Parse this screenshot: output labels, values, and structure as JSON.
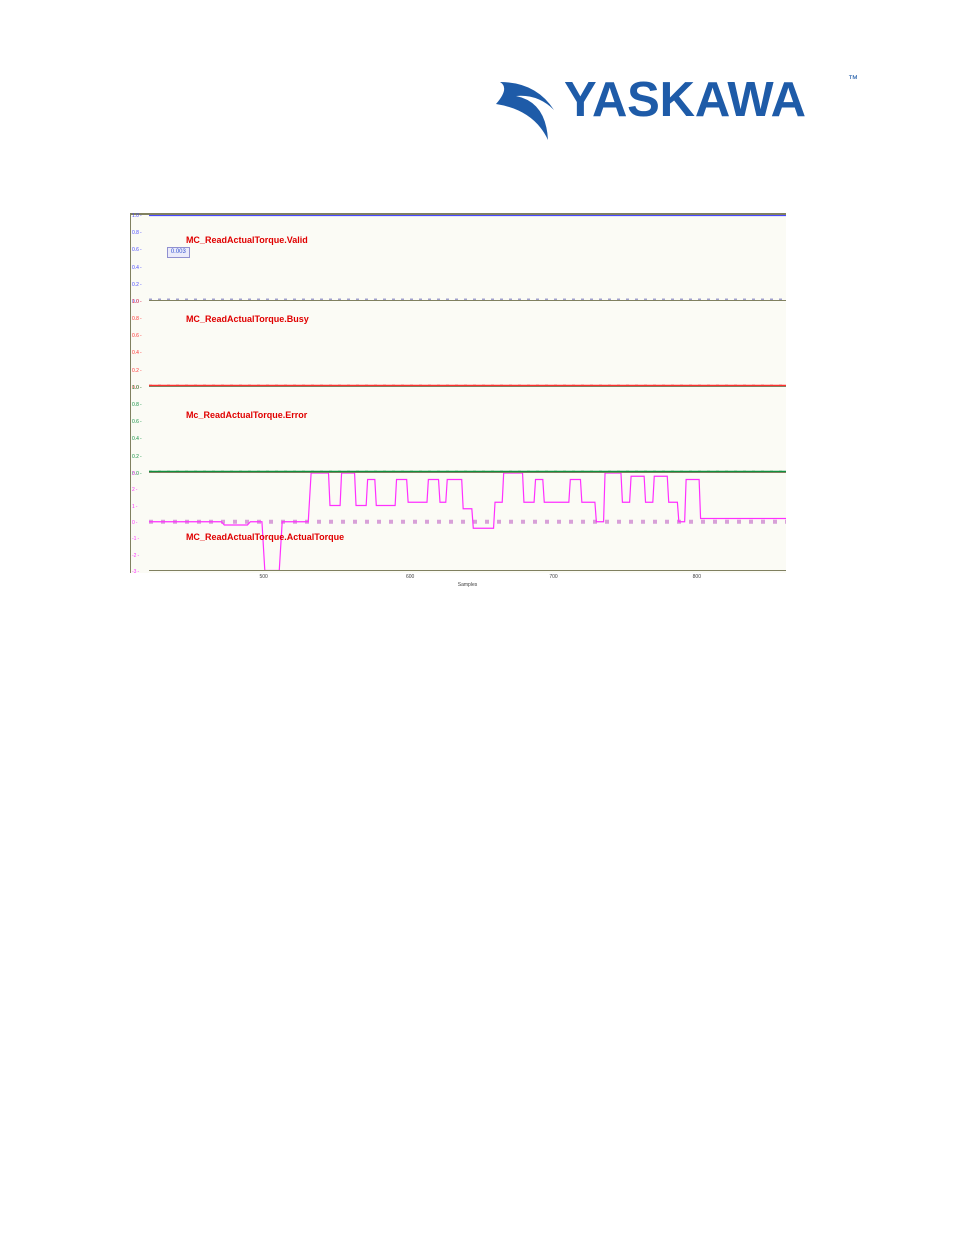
{
  "logo": {
    "text": "YASKAWA",
    "tm": "™",
    "color": "#1e5ba8"
  },
  "chart": {
    "background_color": "#fbfbf5",
    "border_color": "#808060",
    "x_axis": {
      "label": "Samples",
      "ticks": [
        500,
        600,
        700,
        800
      ],
      "tick_positions_pct": [
        18.0,
        41.0,
        63.5,
        86.0
      ],
      "range": [
        420,
        860
      ],
      "label_color": "#404040"
    },
    "subplots": [
      {
        "name": "valid",
        "label": "MC_ReadActualTorque.Valid",
        "label_color": "#e00000",
        "label_pos_pct": [
          5.8,
          24
        ],
        "top_pct": 0,
        "height_pct": 24,
        "trace_color": "#4848ff",
        "baseline_style": "dotted",
        "baseline_color": "#a0a0cc",
        "y_ticks": [
          "1.0",
          "0.8",
          "0.6",
          "0.4",
          "0.2",
          "0.0"
        ],
        "y_tick_color": "#4848ff",
        "value_constant": 1.0,
        "marker_text": "0.003",
        "marker_pos_pct": [
          2.8,
          38
        ]
      },
      {
        "name": "busy",
        "label": "MC_ReadActualTorque.Busy",
        "label_color": "#e00000",
        "label_pos_pct": [
          5.8,
          15
        ],
        "top_pct": 24,
        "height_pct": 24,
        "trace_color": "#ff3030",
        "baseline_style": "dotted",
        "baseline_color": "#d8a0a0",
        "y_ticks": [
          "1.0",
          "0.8",
          "0.6",
          "0.4",
          "0.2",
          "0.0"
        ],
        "y_tick_color": "#ff3030",
        "value_constant": 0.0
      },
      {
        "name": "error",
        "label": "Mc_ReadActualTorque.Error",
        "label_color": "#e00000",
        "label_pos_pct": [
          5.8,
          27
        ],
        "top_pct": 48,
        "height_pct": 24,
        "trace_color": "#109040",
        "baseline_style": "dotted",
        "baseline_color": "#a0c8a0",
        "y_ticks": [
          "1.0",
          "0.8",
          "0.6",
          "0.4",
          "0.2",
          "0.0"
        ],
        "y_tick_color": "#109040",
        "value_constant": 0.0
      },
      {
        "name": "actual-torque",
        "label": "MC_ReadActualTorque.ActualTorque",
        "label_color": "#e00000",
        "label_pos_pct": [
          5.8,
          61
        ],
        "top_pct": 72,
        "height_pct": 27.5,
        "trace_color": "#ff30ff",
        "baseline_style": "dotted",
        "baseline_color": "#d8a0d8",
        "y_ticks": [
          "3",
          "2",
          "1",
          "0",
          "-1",
          "-2",
          "-3"
        ],
        "y_tick_color": "#ff30ff",
        "y_range": [
          -3,
          3
        ],
        "data_points": [
          [
            420,
            0
          ],
          [
            470,
            0
          ],
          [
            472,
            -0.2
          ],
          [
            488,
            -0.2
          ],
          [
            490,
            0
          ],
          [
            498,
            0
          ],
          [
            500,
            -3
          ],
          [
            510,
            -3
          ],
          [
            512,
            0
          ],
          [
            530,
            0
          ],
          [
            532,
            3
          ],
          [
            544,
            3
          ],
          [
            545,
            1
          ],
          [
            552,
            1
          ],
          [
            553,
            3
          ],
          [
            562,
            3
          ],
          [
            563,
            1
          ],
          [
            570,
            1
          ],
          [
            571,
            2.6
          ],
          [
            576,
            2.6
          ],
          [
            577,
            1
          ],
          [
            590,
            1
          ],
          [
            591,
            2.6
          ],
          [
            598,
            2.6
          ],
          [
            599,
            1.2
          ],
          [
            612,
            1.2
          ],
          [
            613,
            2.6
          ],
          [
            620,
            2.6
          ],
          [
            621,
            1.2
          ],
          [
            625,
            1.2
          ],
          [
            626,
            2.6
          ],
          [
            636,
            2.6
          ],
          [
            637,
            0.8
          ],
          [
            643,
            0.8
          ],
          [
            644,
            -0.4
          ],
          [
            658,
            -0.4
          ],
          [
            659,
            1.2
          ],
          [
            664,
            1.2
          ],
          [
            665,
            3
          ],
          [
            678,
            3
          ],
          [
            679,
            1.2
          ],
          [
            686,
            1.2
          ],
          [
            687,
            2.6
          ],
          [
            692,
            2.6
          ],
          [
            693,
            1.2
          ],
          [
            710,
            1.2
          ],
          [
            711,
            2.6
          ],
          [
            718,
            2.6
          ],
          [
            719,
            1.2
          ],
          [
            728,
            1.2
          ],
          [
            729,
            0
          ],
          [
            734,
            0
          ],
          [
            735,
            3
          ],
          [
            746,
            3
          ],
          [
            747,
            1.2
          ],
          [
            752,
            1.2
          ],
          [
            753,
            2.8
          ],
          [
            762,
            2.8
          ],
          [
            763,
            1.2
          ],
          [
            768,
            1.2
          ],
          [
            769,
            2.8
          ],
          [
            778,
            2.8
          ],
          [
            779,
            1.2
          ],
          [
            785,
            1.2
          ],
          [
            786,
            0
          ],
          [
            790,
            0
          ],
          [
            791,
            2.6
          ],
          [
            800,
            2.6
          ],
          [
            801,
            0.2
          ],
          [
            860,
            0.2
          ]
        ]
      }
    ]
  }
}
